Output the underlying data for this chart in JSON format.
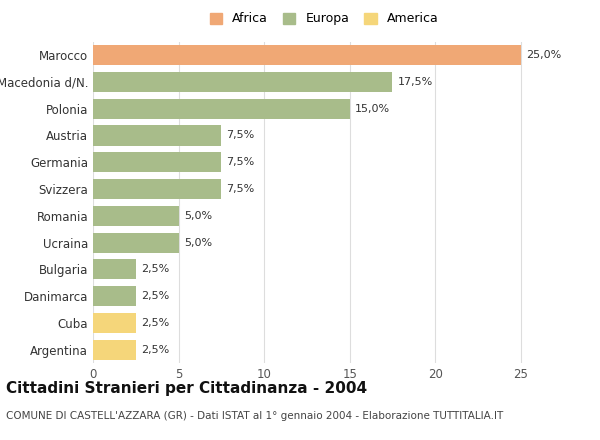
{
  "categories": [
    "Marocco",
    "Macedonia d/N.",
    "Polonia",
    "Austria",
    "Germania",
    "Svizzera",
    "Romania",
    "Ucraina",
    "Bulgaria",
    "Danimarca",
    "Cuba",
    "Argentina"
  ],
  "values": [
    25.0,
    17.5,
    15.0,
    7.5,
    7.5,
    7.5,
    5.0,
    5.0,
    2.5,
    2.5,
    2.5,
    2.5
  ],
  "colors": [
    "#f0a875",
    "#a8bc8a",
    "#a8bc8a",
    "#a8bc8a",
    "#a8bc8a",
    "#a8bc8a",
    "#a8bc8a",
    "#a8bc8a",
    "#a8bc8a",
    "#a8bc8a",
    "#f5d67a",
    "#f5d67a"
  ],
  "labels": [
    "25,0%",
    "17,5%",
    "15,0%",
    "7,5%",
    "7,5%",
    "7,5%",
    "5,0%",
    "5,0%",
    "2,5%",
    "2,5%",
    "2,5%",
    "2,5%"
  ],
  "legend_labels": [
    "Africa",
    "Europa",
    "America"
  ],
  "legend_colors": [
    "#f0a875",
    "#a8bc8a",
    "#f5d67a"
  ],
  "title": "Cittadini Stranieri per Cittadinanza - 2004",
  "subtitle": "COMUNE DI CASTELL'AZZARA (GR) - Dati ISTAT al 1° gennaio 2004 - Elaborazione TUTTITALIA.IT",
  "xlim": [
    0,
    27
  ],
  "xticks": [
    0,
    5,
    10,
    15,
    20,
    25
  ],
  "background_color": "#ffffff",
  "grid_color": "#dddddd",
  "bar_height": 0.75,
  "title_fontsize": 11,
  "subtitle_fontsize": 7.5,
  "label_fontsize": 8,
  "tick_fontsize": 8.5
}
